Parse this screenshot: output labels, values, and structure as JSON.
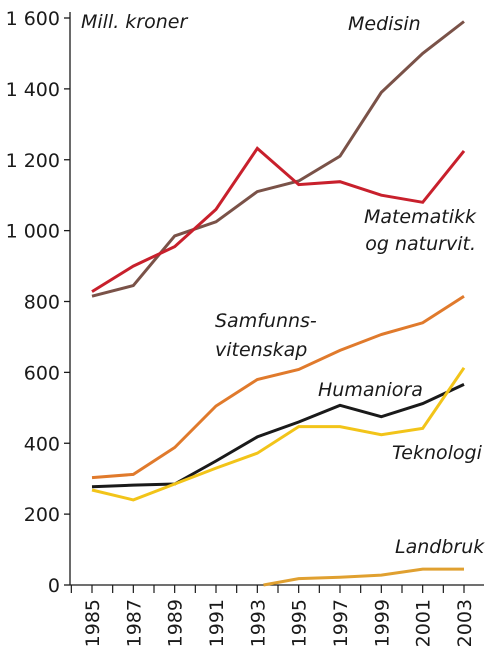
{
  "chart_data": {
    "type": "line",
    "ylabel": "Mill. kroner",
    "ylim": [
      0,
      1600
    ],
    "yticks": [
      0,
      200,
      400,
      600,
      800,
      1000,
      1200,
      1400,
      1600
    ],
    "ytick_labels": [
      "0",
      "200",
      "400",
      "600",
      "800",
      "1 000",
      "1 200",
      "1 400",
      "1 600"
    ],
    "x": [
      1985,
      1987,
      1989,
      1991,
      1993,
      1995,
      1997,
      1999,
      2001,
      2003
    ],
    "xlim": [
      1984,
      2005
    ],
    "xticks": [
      1985,
      1987,
      1989,
      1991,
      1993,
      1995,
      1997,
      1999,
      2001,
      2003
    ],
    "xtick_labels": [
      "1985",
      "1987",
      "1989",
      "1991",
      "1993",
      "1995",
      "1997",
      "1999",
      "2001",
      "2003"
    ],
    "grid": false,
    "legend": "none",
    "series": [
      {
        "name": "Medisin",
        "color": "#7a5248",
        "x": [
          1985,
          1987,
          1989,
          1991,
          1993,
          1995,
          1997,
          1999,
          2001,
          2003
        ],
        "values": [
          815,
          845,
          985,
          1025,
          1110,
          1140,
          1210,
          1390,
          1500,
          1590
        ]
      },
      {
        "name": "Matematikk og naturvit.",
        "label_lines": [
          "Matematikk",
          "og naturvit."
        ],
        "color": "#c8202c",
        "x": [
          1985,
          1987,
          1989,
          1991,
          1993,
          1995,
          1997,
          1999,
          2001,
          2003
        ],
        "values": [
          828,
          900,
          955,
          1060,
          1232,
          1130,
          1138,
          1100,
          1080,
          1225
        ]
      },
      {
        "name": "Samfunns-vitenskap",
        "label_lines": [
          "Samfunns-",
          "vitenskap"
        ],
        "color": "#e07a2c",
        "x": [
          1985,
          1987,
          1989,
          1991,
          1993,
          1995,
          1997,
          1999,
          2001,
          2003
        ],
        "values": [
          303,
          312,
          388,
          505,
          580,
          608,
          662,
          707,
          740,
          815
        ]
      },
      {
        "name": "Humaniora",
        "color": "#1a1a1a",
        "x": [
          1985,
          1987,
          1989,
          1991,
          1993,
          1995,
          1997,
          1999,
          2001,
          2003
        ],
        "values": [
          277,
          282,
          285,
          350,
          418,
          460,
          507,
          475,
          512,
          566
        ]
      },
      {
        "name": "Teknologi",
        "color": "#f2c419",
        "x": [
          1985,
          1987,
          1989,
          1991,
          1993,
          1995,
          1997,
          1999,
          2001,
          2003
        ],
        "values": [
          268,
          240,
          285,
          330,
          372,
          447,
          447,
          424,
          442,
          613
        ]
      },
      {
        "name": "Landbruk",
        "color": "#e0a030",
        "x": [
          1993.3,
          1995,
          1997,
          1999,
          2001,
          2003
        ],
        "values": [
          0,
          18,
          22,
          28,
          45,
          45
        ]
      }
    ]
  }
}
